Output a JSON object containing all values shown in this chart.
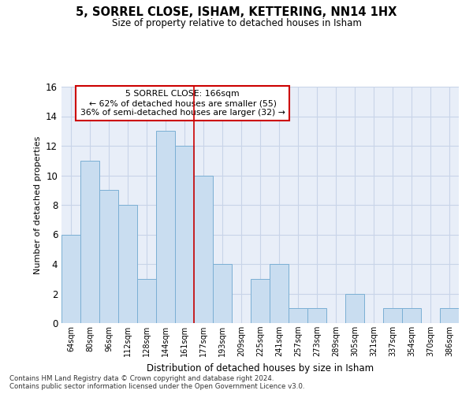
{
  "title": "5, SORREL CLOSE, ISHAM, KETTERING, NN14 1HX",
  "subtitle": "Size of property relative to detached houses in Isham",
  "xlabel": "Distribution of detached houses by size in Isham",
  "ylabel": "Number of detached properties",
  "categories": [
    "64sqm",
    "80sqm",
    "96sqm",
    "112sqm",
    "128sqm",
    "144sqm",
    "161sqm",
    "177sqm",
    "193sqm",
    "209sqm",
    "225sqm",
    "241sqm",
    "257sqm",
    "273sqm",
    "289sqm",
    "305sqm",
    "321sqm",
    "337sqm",
    "354sqm",
    "370sqm",
    "386sqm"
  ],
  "values": [
    6,
    11,
    9,
    8,
    3,
    13,
    12,
    10,
    4,
    0,
    3,
    4,
    1,
    1,
    0,
    2,
    0,
    1,
    1,
    0,
    1
  ],
  "bar_color": "#c9ddf0",
  "bar_edge_color": "#7bafd4",
  "highlight_bar_index": 6,
  "highlight_line_color": "#cc0000",
  "annotation_title": "5 SORREL CLOSE: 166sqm",
  "annotation_line1": "← 62% of detached houses are smaller (55)",
  "annotation_line2": "36% of semi-detached houses are larger (32) →",
  "annotation_box_color": "#ffffff",
  "annotation_box_edge_color": "#cc0000",
  "ylim": [
    0,
    16
  ],
  "yticks": [
    0,
    2,
    4,
    6,
    8,
    10,
    12,
    14,
    16
  ],
  "grid_color": "#c8d4e8",
  "background_color": "#e8eef8",
  "footer_line1": "Contains HM Land Registry data © Crown copyright and database right 2024.",
  "footer_line2": "Contains public sector information licensed under the Open Government Licence v3.0."
}
